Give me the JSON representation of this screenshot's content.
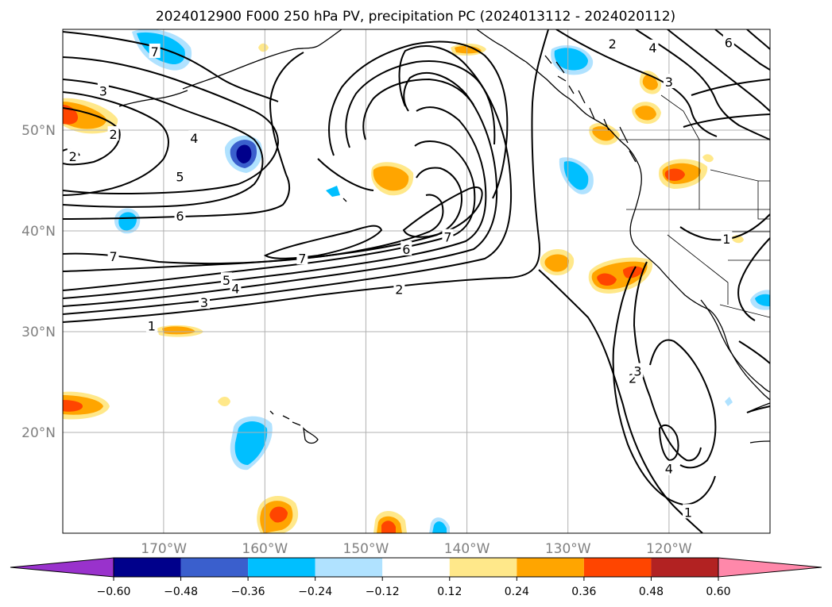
{
  "title": "2024012900 F000 250 hPa PV, precipitation PC (2024013112 - 2024020112)",
  "map": {
    "lon_range": [
      -180,
      -110
    ],
    "lat_range": [
      10,
      60
    ],
    "lat_ticks": [
      {
        "value": 20,
        "label": "20°N"
      },
      {
        "value": 30,
        "label": "30°N"
      },
      {
        "value": 40,
        "label": "40°N"
      },
      {
        "value": 50,
        "label": "50°N"
      }
    ],
    "lon_ticks": [
      {
        "value": -170,
        "label": "170°W"
      },
      {
        "value": -160,
        "label": "160°W"
      },
      {
        "value": -150,
        "label": "150°W"
      },
      {
        "value": -140,
        "label": "140°W"
      },
      {
        "value": -130,
        "label": "130°W"
      },
      {
        "value": -120,
        "label": "120°W"
      }
    ],
    "gridlines": true
  },
  "colorbar": {
    "boundaries": [
      -0.6,
      -0.48,
      -0.36,
      -0.24,
      -0.12,
      0.12,
      0.24,
      0.36,
      0.48,
      0.6
    ],
    "tick_labels": [
      "−0.60",
      "−0.48",
      "−0.36",
      "−0.24",
      "−0.12",
      "0.12",
      "0.24",
      "0.36",
      "0.48",
      "0.60"
    ],
    "under_color": "#9932cc",
    "over_color": "#ff88aa",
    "colors": [
      "#00008b",
      "#3a5fcd",
      "#00bfff",
      "#b0e2ff",
      "#ffffff",
      "#ffe88a",
      "#ffa500",
      "#ff4500",
      "#b22222"
    ]
  },
  "contour_labels": [
    {
      "text": "7",
      "lon": -170.9,
      "lat": 57.8
    },
    {
      "text": "3",
      "lon": -176,
      "lat": 53.9
    },
    {
      "text": "2",
      "lon": -175,
      "lat": 49.6
    },
    {
      "text": "2",
      "lon": -179,
      "lat": 47.4
    },
    {
      "text": "4",
      "lon": -167,
      "lat": 49.2
    },
    {
      "text": "5",
      "lon": -168.4,
      "lat": 45.4
    },
    {
      "text": "6",
      "lon": -168.4,
      "lat": 41.5
    },
    {
      "text": "7",
      "lon": -175,
      "lat": 37.5
    },
    {
      "text": "7",
      "lon": -156.3,
      "lat": 37.3
    },
    {
      "text": "5",
      "lon": -163.8,
      "lat": 35.1
    },
    {
      "text": "4",
      "lon": -162.9,
      "lat": 34.3
    },
    {
      "text": "3",
      "lon": -166,
      "lat": 32.9
    },
    {
      "text": "2",
      "lon": -146.7,
      "lat": 34.2
    },
    {
      "text": "1",
      "lon": -171.2,
      "lat": 30.6
    },
    {
      "text": "6",
      "lon": -146,
      "lat": 38.2
    },
    {
      "text": "7",
      "lon": -141.9,
      "lat": 39.4
    },
    {
      "text": "2",
      "lon": -125.6,
      "lat": 58.6
    },
    {
      "text": "4",
      "lon": -121.6,
      "lat": 58.2
    },
    {
      "text": "3",
      "lon": -120,
      "lat": 54.8
    },
    {
      "text": "6",
      "lon": -114.1,
      "lat": 58.7
    },
    {
      "text": "1",
      "lon": -114.3,
      "lat": 39.2
    },
    {
      "text": "2",
      "lon": -123.6,
      "lat": 25.4
    },
    {
      "text": "3",
      "lon": -123.1,
      "lat": 26.1
    },
    {
      "text": "4",
      "lon": -120,
      "lat": 16.4
    },
    {
      "text": "1",
      "lon": -118.1,
      "lat": 12.1
    }
  ]
}
